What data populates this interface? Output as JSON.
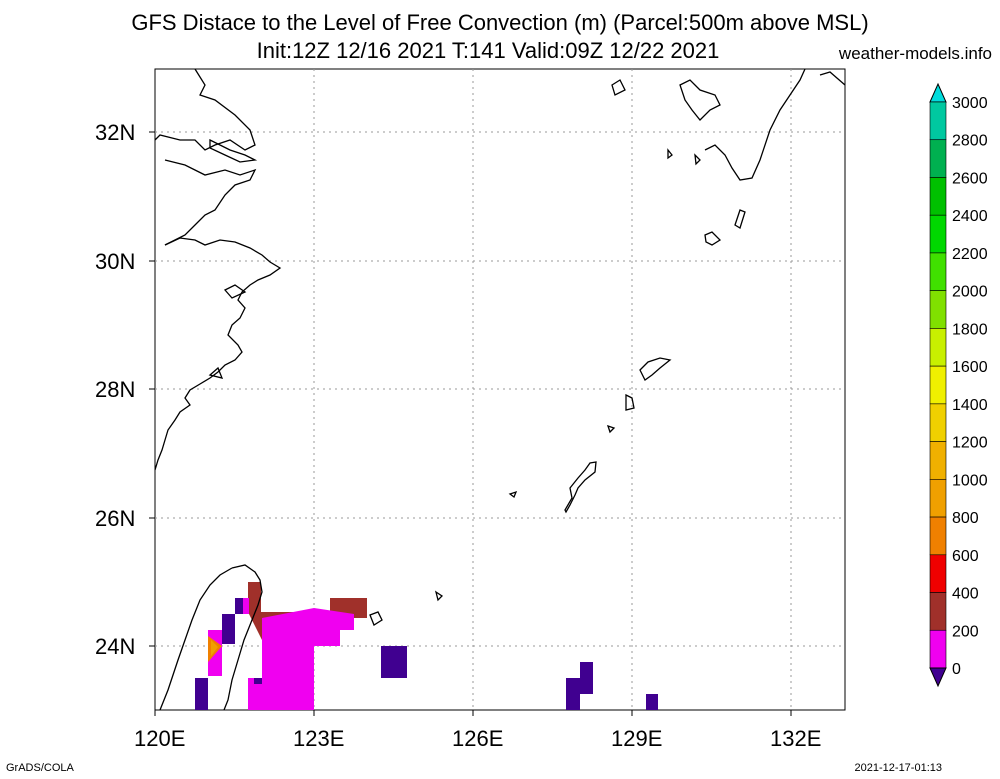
{
  "header": {
    "title_line1": "GFS Distace to the Level of Free Convection (m) (Parcel:500m above MSL)",
    "title_line2": "Init:12Z 12/16 2021 T:141 Valid:09Z 12/22 2021",
    "site": "weather-models.info"
  },
  "axes": {
    "lat_labels": [
      "32N",
      "30N",
      "28N",
      "26N",
      "24N"
    ],
    "lon_labels": [
      "120E",
      "123E",
      "126E",
      "129E",
      "132E"
    ],
    "lon_range": [
      120,
      133
    ],
    "lat_range": [
      23,
      33
    ],
    "grid": "dotted"
  },
  "colorbar": {
    "labels": [
      "3000",
      "2800",
      "2600",
      "2400",
      "2200",
      "2000",
      "1800",
      "1600",
      "1400",
      "1200",
      "1000",
      "800",
      "600",
      "400",
      "200",
      "0"
    ],
    "colors": [
      "#00dcdc",
      "#00c8a0",
      "#00b050",
      "#00c000",
      "#00d800",
      "#40e000",
      "#80e000",
      "#c8f000",
      "#f0f000",
      "#f0d000",
      "#f0b000",
      "#f0a000",
      "#f08000",
      "#f00000",
      "#a0302a",
      "#f000f0",
      "#400090"
    ]
  },
  "footer": {
    "left": "GrADS/COLA",
    "right": "2021-12-17-01:13"
  }
}
